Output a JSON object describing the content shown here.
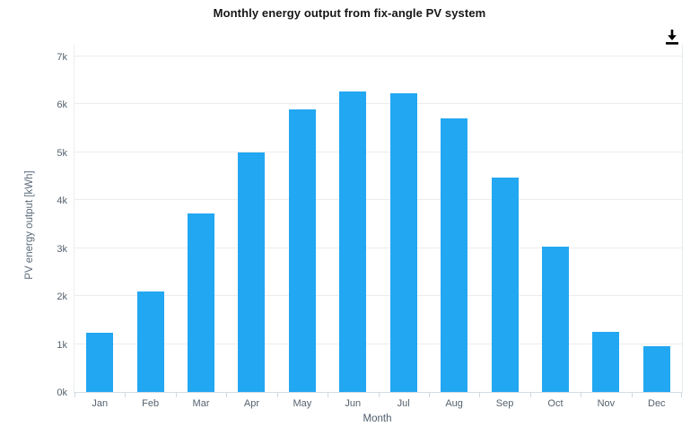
{
  "header": {
    "title": "Monthly energy output from fix-angle PV system"
  },
  "toolbar": {
    "download_icon": "download-icon"
  },
  "chart_data": {
    "type": "bar",
    "title": "Monthly energy output from fix-angle PV system",
    "xlabel": "Month",
    "ylabel": "PV energy output [kWh]",
    "categories": [
      "Jan",
      "Feb",
      "Mar",
      "Apr",
      "May",
      "Jun",
      "Jul",
      "Aug",
      "Sep",
      "Oct",
      "Nov",
      "Dec"
    ],
    "values": [
      1230,
      2100,
      3730,
      5000,
      5890,
      6270,
      6230,
      5710,
      4470,
      3040,
      1260,
      960
    ],
    "unit": "kWh",
    "ylim": [
      0,
      7000
    ],
    "ytick_step": 1000,
    "ytick_labels": [
      "0k",
      "1k",
      "2k",
      "3k",
      "4k",
      "5k",
      "6k",
      "7k"
    ],
    "grid": true,
    "legend_position": "none",
    "bar_color": "#22a7f2"
  },
  "colors": {
    "bar": "#22a7f2",
    "gridline": "#ececec",
    "axis_line": "#d4dce2",
    "tick_label": "#55626e",
    "axis_title": "#4d5d6d",
    "title": "#161616",
    "icon": "#000000",
    "background": "#ffffff"
  }
}
